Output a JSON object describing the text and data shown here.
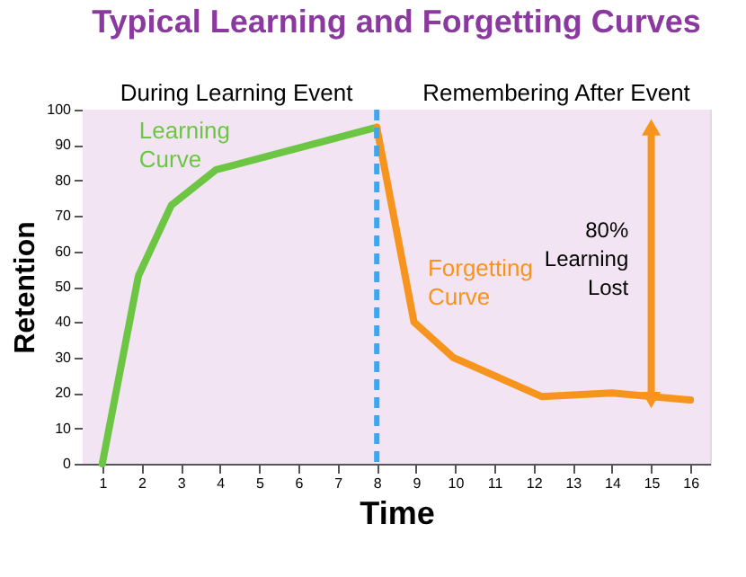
{
  "chart_data": {
    "type": "line",
    "title": "Typical Learning and Forgetting Curves",
    "xlabel": "Time",
    "ylabel": "Retention",
    "series": [
      {
        "name": "Learning Curve",
        "color": "#6cc644",
        "x": [
          1,
          1.92,
          2.76,
          3.9,
          8
        ],
        "values": [
          0,
          53,
          73,
          83,
          95
        ]
      },
      {
        "name": "Forgetting Curve",
        "color": "#f7941d",
        "x": [
          8,
          8.95,
          9.95,
          12.2,
          14,
          16
        ],
        "values": [
          95,
          40,
          30,
          19,
          20,
          18
        ]
      }
    ],
    "xlim": [
      0.5,
      16.5
    ],
    "xticks": [
      1,
      2,
      3,
      4,
      5,
      6,
      7,
      8,
      9,
      10,
      11,
      12,
      13,
      14,
      15,
      16
    ],
    "ylim": [
      0,
      100
    ],
    "yticks": [
      0,
      10,
      20,
      30,
      40,
      50,
      60,
      70,
      80,
      90,
      100
    ],
    "legend": false,
    "marker": "none",
    "line_style": "solid",
    "ref_lines": [
      {
        "axis": "x",
        "value": 8,
        "color": "#3aa8f0",
        "line_style": "dashed"
      }
    ],
    "annotations": [
      "During Learning Event",
      "Remembering After Event",
      "80% Learning Lost"
    ]
  }
}
